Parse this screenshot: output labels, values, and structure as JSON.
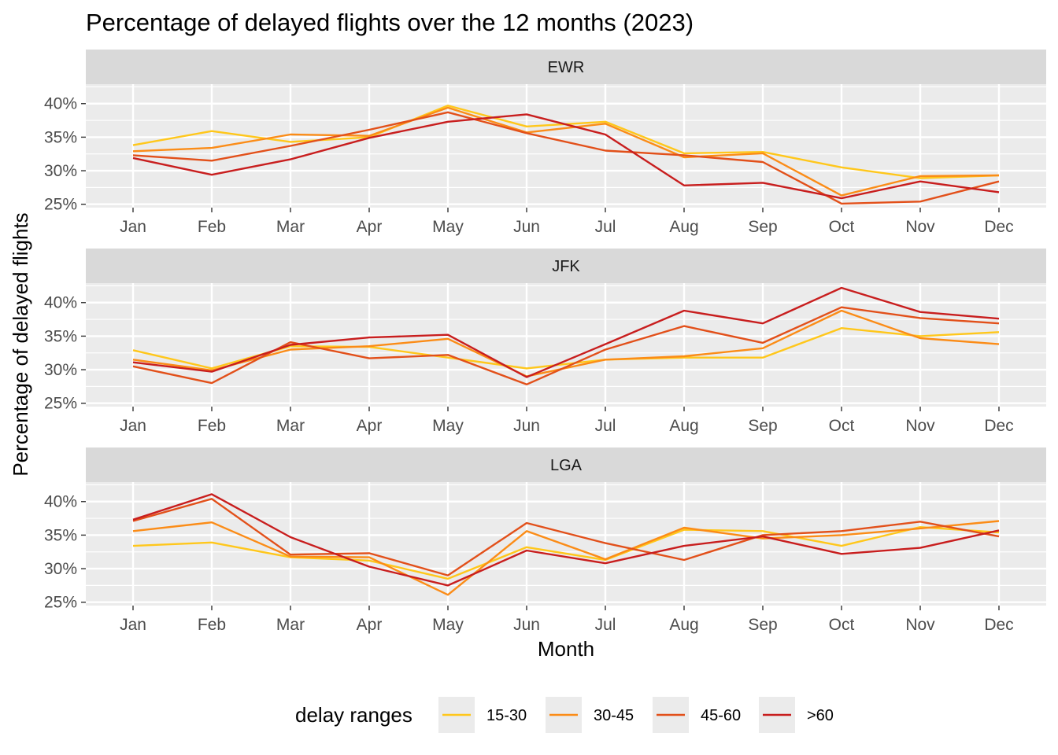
{
  "chart_data": {
    "type": "line",
    "title": "Percentage of delayed flights over the 12 months (2023)",
    "xlabel": "Month",
    "ylabel": "Percentage of delayed flights",
    "categories": [
      "Jan",
      "Feb",
      "Mar",
      "Apr",
      "May",
      "Jun",
      "Jul",
      "Aug",
      "Sep",
      "Oct",
      "Nov",
      "Dec"
    ],
    "yticks": [
      25,
      30,
      35,
      40
    ],
    "ytick_labels": [
      "25%",
      "30%",
      "35%",
      "40%"
    ],
    "ylim": [
      24.5,
      42.9
    ],
    "grid": true,
    "legend": {
      "title": "delay ranges",
      "position": "bottom",
      "items": [
        {
          "label": "15-30",
          "color": "#FFC71B"
        },
        {
          "label": "30-45",
          "color": "#FB8C17"
        },
        {
          "label": "45-60",
          "color": "#E2501A"
        },
        {
          "label": ">60",
          "color": "#C81E1E"
        }
      ]
    },
    "panels": [
      {
        "name": "EWR",
        "series": [
          {
            "name": "15-30",
            "values": [
              33.8,
              35.9,
              34.3,
              35.0,
              39.7,
              36.6,
              37.3,
              32.6,
              32.8,
              30.5,
              28.9,
              29.3
            ]
          },
          {
            "name": "30-45",
            "values": [
              32.9,
              33.4,
              35.4,
              35.2,
              39.4,
              35.7,
              37.0,
              32.0,
              32.6,
              26.3,
              29.2,
              29.3
            ]
          },
          {
            "name": "45-60",
            "values": [
              32.3,
              31.5,
              33.7,
              36.1,
              38.7,
              35.6,
              33.0,
              32.3,
              31.3,
              25.1,
              25.4,
              28.4
            ]
          },
          {
            "name": ">60",
            "values": [
              31.9,
              29.4,
              31.7,
              34.9,
              37.3,
              38.4,
              35.4,
              27.8,
              28.2,
              25.9,
              28.4,
              26.8
            ]
          }
        ]
      },
      {
        "name": "JFK",
        "series": [
          {
            "name": "15-30",
            "values": [
              32.9,
              30.2,
              33.5,
              33.4,
              31.8,
              30.2,
              31.5,
              31.8,
              31.8,
              36.2,
              35.0,
              35.6
            ]
          },
          {
            "name": "30-45",
            "values": [
              31.5,
              29.9,
              33.0,
              33.5,
              34.6,
              29.0,
              31.5,
              32.0,
              33.2,
              38.8,
              34.7,
              33.8
            ]
          },
          {
            "name": "45-60",
            "values": [
              30.5,
              28.0,
              34.1,
              31.7,
              32.2,
              27.8,
              33.0,
              36.5,
              34.0,
              39.3,
              37.7,
              36.9
            ]
          },
          {
            "name": ">60",
            "values": [
              31.1,
              29.7,
              33.7,
              34.8,
              35.2,
              28.9,
              33.8,
              38.8,
              36.9,
              42.2,
              38.6,
              37.6
            ]
          }
        ]
      },
      {
        "name": "LGA",
        "series": [
          {
            "name": "15-30",
            "values": [
              33.4,
              33.9,
              31.7,
              31.2,
              28.5,
              33.2,
              31.3,
              35.8,
              35.6,
              33.4,
              36.2,
              35.4
            ]
          },
          {
            "name": "30-45",
            "values": [
              35.6,
              36.9,
              31.8,
              31.7,
              26.1,
              35.6,
              31.4,
              36.1,
              34.5,
              35.0,
              36.0,
              37.1
            ]
          },
          {
            "name": "45-60",
            "values": [
              37.1,
              40.4,
              32.1,
              32.3,
              29.0,
              36.8,
              33.8,
              31.3,
              35.0,
              35.6,
              37.0,
              34.8
            ]
          },
          {
            "name": ">60",
            "values": [
              37.3,
              41.1,
              34.7,
              30.3,
              27.5,
              32.7,
              30.8,
              33.4,
              34.8,
              32.2,
              33.1,
              35.7
            ]
          }
        ]
      }
    ]
  }
}
